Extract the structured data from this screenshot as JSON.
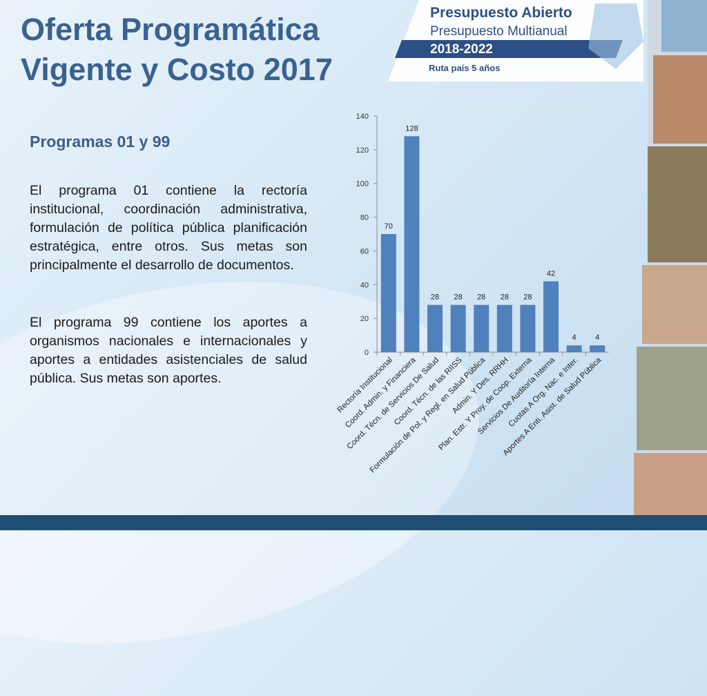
{
  "slide": {
    "title_line1": "Oferta Programática",
    "title_line2": "Vigente y Costo 2017",
    "subtitle": "Programas 01 y 99",
    "paragraph1": "El programa 01 contiene la rectoría institucional, coordinación administrativa, formulación de política pública planificación estratégica, entre otros. Sus metas son principalmente el desarrollo de documentos.",
    "paragraph2": "El programa 99 contiene los aportes a organismos nacionales e internacionales y aportes a entidades asistenciales de salud pública. Sus metas son aportes."
  },
  "logo": {
    "line1": "Presupuesto Abierto",
    "line2": "Presupuesto Multianual",
    "years": "2018-2022",
    "tagline": "Ruta país 5 años"
  },
  "colors": {
    "bar": "#4f81bd",
    "title": "#3a6291",
    "banner": "#2c4f86"
  },
  "chart_data": {
    "type": "bar",
    "categories": [
      "Rectoría Institucional",
      "Coord. Admin. y Financiera",
      "Coord. Técn. de Servicios De Salud",
      "Coord. Técn. de las RIISS",
      "Formulación de Pol. y Regl. en Salud Pública",
      "Admin. Y Des. RRHH",
      "Plan. Estr. Y Proy. de Coop. Externa",
      "Servicios De Auditoría Interna",
      "Cuotas A Org. Nac. e Inter.",
      "Aportes A Enti. Asist. de Salud Pública"
    ],
    "values": [
      70,
      128,
      28,
      28,
      28,
      28,
      28,
      42,
      4,
      4
    ],
    "data_labels": [
      "70",
      "128",
      "28",
      "28",
      "28",
      "28",
      "28",
      "42",
      "4",
      "4"
    ],
    "yticks": [
      0,
      20,
      40,
      60,
      80,
      100,
      120,
      140
    ],
    "ylim": [
      0,
      140
    ],
    "grid": false,
    "legend": "none"
  }
}
